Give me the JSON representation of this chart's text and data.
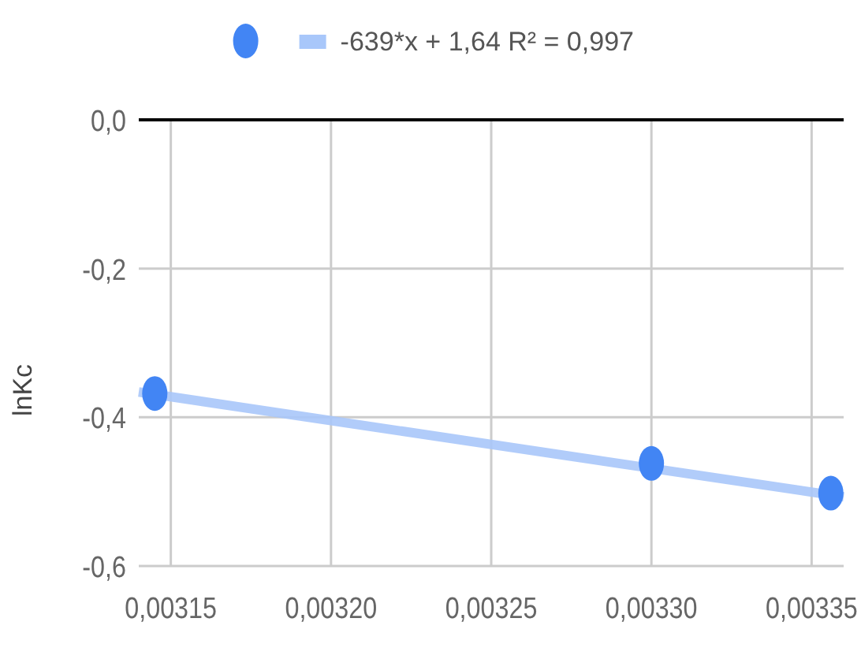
{
  "chart_data": {
    "type": "scatter",
    "ylabel": "lnKc",
    "xlim": [
      0.00314,
      0.00336
    ],
    "xticks": [
      {
        "value": 0.00315,
        "label": "0,00315"
      },
      {
        "value": 0.0032,
        "label": "0,00320"
      },
      {
        "value": 0.00325,
        "label": "0,00325"
      },
      {
        "value": 0.0033,
        "label": "0,00330"
      },
      {
        "value": 0.00335,
        "label": "0,00335"
      }
    ],
    "ylim": [
      -0.6,
      0
    ],
    "yticks": [
      {
        "value": -0.6,
        "label": "-0,6"
      },
      {
        "value": -0.4,
        "label": "-0,4"
      },
      {
        "value": -0.2,
        "label": "-0,2"
      },
      {
        "value": 0,
        "label": "0,0"
      }
    ],
    "grid": true,
    "legend": "top",
    "ref_lines": [
      {
        "axis": "y",
        "value": 0,
        "color": "#000000"
      }
    ],
    "series": [
      {
        "marker": "circle",
        "color": "#4285f4",
        "x": [
          0.003145,
          0.0033,
          0.003356
        ],
        "values": [
          -0.368,
          -0.462,
          -0.502
        ]
      },
      {
        "type": "line",
        "name": "-639*x + 1,64 R² = 0,997",
        "color": "#a8c7fa",
        "x": [
          0.00314,
          0.00336
        ],
        "values": [
          -0.366,
          -0.507
        ]
      }
    ]
  }
}
